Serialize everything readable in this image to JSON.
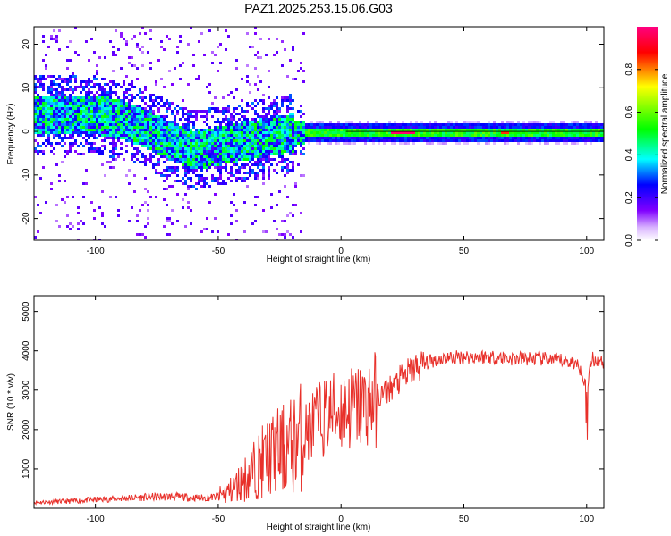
{
  "title": "PAZ1.2025.253.15.06.G03",
  "chart_data": [
    {
      "type": "heatmap",
      "name": "spectrogram",
      "xlabel": "Height of straight line (km)",
      "ylabel": "Frequency (Hz)",
      "xlim": [
        -125,
        107
      ],
      "ylim": [
        -25,
        24
      ],
      "xticks": [
        -100,
        -50,
        0,
        50,
        100
      ],
      "yticks": [
        20,
        10,
        0,
        -10,
        -20
      ],
      "colorbar": {
        "label": "Normalized spectral amplitude",
        "range": [
          0,
          1
        ],
        "ticks": [
          0.0,
          0.2,
          0.4,
          0.6,
          0.8
        ],
        "colormap": [
          "#ffffff",
          "#d9b3ff",
          "#8000ff",
          "#0000ff",
          "#00ffff",
          "#00ff00",
          "#ffff00",
          "#ff0000",
          "#ff0080"
        ]
      },
      "ridge": [
        {
          "x": -110,
          "y": 4
        },
        {
          "x": -100,
          "y": 4
        },
        {
          "x": -90,
          "y": 3
        },
        {
          "x": -80,
          "y": 1
        },
        {
          "x": -70,
          "y": -2
        },
        {
          "x": -60,
          "y": -4
        },
        {
          "x": -50,
          "y": -3
        },
        {
          "x": -40,
          "y": -2
        },
        {
          "x": -30,
          "y": -1
        },
        {
          "x": -20,
          "y": 0
        },
        {
          "x": 0,
          "y": 0
        },
        {
          "x": 50,
          "y": 0
        },
        {
          "x": 105,
          "y": 0
        }
      ]
    },
    {
      "type": "line",
      "name": "snr",
      "xlabel": "Height of straight line (km)",
      "ylabel": "SNR (10 * v/v)",
      "xlim": [
        -125,
        107
      ],
      "ylim": [
        0,
        5400
      ],
      "xticks": [
        -100,
        -50,
        0,
        50,
        100
      ],
      "yticks": [
        1000,
        2000,
        3000,
        4000,
        5000
      ],
      "color": "#e8302a",
      "x": [
        -125,
        -110,
        -100,
        -90,
        -80,
        -70,
        -60,
        -55,
        -50,
        -45,
        -40,
        -35,
        -30,
        -25,
        -20,
        -15,
        -10,
        -5,
        0,
        5,
        10,
        15,
        20,
        25,
        30,
        35,
        40,
        50,
        60,
        70,
        80,
        90,
        95,
        98,
        100,
        102,
        107
      ],
      "y": [
        150,
        180,
        220,
        250,
        280,
        300,
        270,
        260,
        300,
        450,
        700,
        1000,
        1300,
        1450,
        1600,
        1900,
        2200,
        2400,
        2500,
        2550,
        2650,
        2800,
        3050,
        3300,
        3550,
        3700,
        3800,
        3850,
        3850,
        3800,
        3800,
        3750,
        3700,
        3500,
        3000,
        3800,
        3700
      ]
    }
  ]
}
